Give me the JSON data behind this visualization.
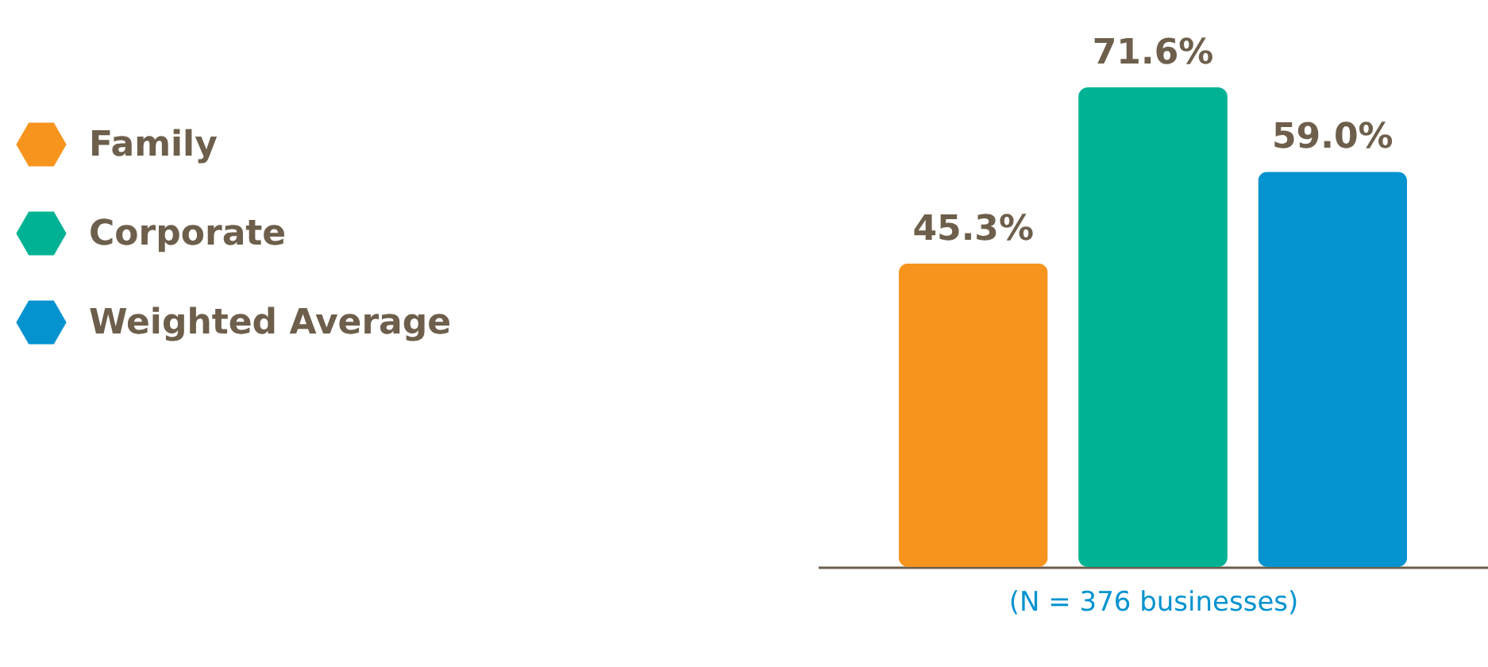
{
  "chart_data": {
    "type": "bar",
    "categories": [
      null
    ],
    "series": [
      {
        "name": "Family",
        "color": "#f7941d",
        "values": [
          45.3
        ],
        "value_labels": [
          "45.3%"
        ]
      },
      {
        "name": "Corporate",
        "color": "#00b294",
        "values": [
          71.6
        ],
        "value_labels": [
          "71.6%"
        ]
      },
      {
        "name": "Weighted Average",
        "color": "#0593d0",
        "values": [
          59.0
        ],
        "value_labels": [
          "59.0%"
        ]
      }
    ],
    "legend": "left",
    "annotations": [
      "(N = 376 businesses)"
    ]
  }
}
